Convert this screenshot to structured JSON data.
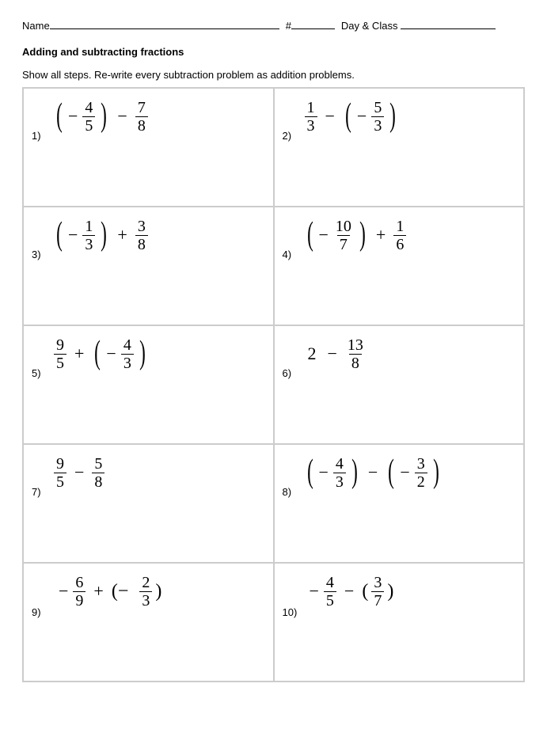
{
  "header": {
    "name_label": "Name",
    "hash_label": "#",
    "dayclass_label": "Day & Class"
  },
  "title": "Adding and subtracting fractions",
  "instructions": "Show all steps. Re-write every subtraction problem as addition problems.",
  "problems": [
    {
      "num": "1)",
      "parts": [
        {
          "t": "lp"
        },
        {
          "t": "neg"
        },
        {
          "t": "frac",
          "n": "4",
          "d": "5"
        },
        {
          "t": "rp"
        },
        {
          "t": "op",
          "v": "−"
        },
        {
          "t": "frac",
          "n": "7",
          "d": "8"
        }
      ]
    },
    {
      "num": "2)",
      "parts": [
        {
          "t": "frac",
          "n": "1",
          "d": "3"
        },
        {
          "t": "op",
          "v": "−"
        },
        {
          "t": "lp"
        },
        {
          "t": "neg"
        },
        {
          "t": "frac",
          "n": "5",
          "d": "3"
        },
        {
          "t": "rp"
        }
      ]
    },
    {
      "num": "3)",
      "parts": [
        {
          "t": "lp"
        },
        {
          "t": "neg"
        },
        {
          "t": "frac",
          "n": "1",
          "d": "3"
        },
        {
          "t": "rp"
        },
        {
          "t": "op",
          "v": "+"
        },
        {
          "t": "frac",
          "n": "3",
          "d": "8"
        }
      ]
    },
    {
      "num": "4)",
      "parts": [
        {
          "t": "lp"
        },
        {
          "t": "neg"
        },
        {
          "t": "frac",
          "n": "10",
          "d": "7"
        },
        {
          "t": "rp"
        },
        {
          "t": "op",
          "v": "+"
        },
        {
          "t": "frac",
          "n": "1",
          "d": "6"
        }
      ]
    },
    {
      "num": "5)",
      "parts": [
        {
          "t": "frac",
          "n": "9",
          "d": "5"
        },
        {
          "t": "op",
          "v": "+"
        },
        {
          "t": "lp"
        },
        {
          "t": "neg"
        },
        {
          "t": "frac",
          "n": "4",
          "d": "3"
        },
        {
          "t": "rp"
        }
      ]
    },
    {
      "num": "6)",
      "parts": [
        {
          "t": "whole",
          "v": "2"
        },
        {
          "t": "op",
          "v": "−"
        },
        {
          "t": "frac",
          "n": "13",
          "d": "8"
        }
      ]
    },
    {
      "num": "7)",
      "parts": [
        {
          "t": "frac",
          "n": "9",
          "d": "5"
        },
        {
          "t": "op",
          "v": "−"
        },
        {
          "t": "frac",
          "n": "5",
          "d": "8"
        }
      ]
    },
    {
      "num": "8)",
      "parts": [
        {
          "t": "lp"
        },
        {
          "t": "neg"
        },
        {
          "t": "frac",
          "n": "4",
          "d": "3"
        },
        {
          "t": "rp"
        },
        {
          "t": "op",
          "v": "−"
        },
        {
          "t": "lp"
        },
        {
          "t": "neg"
        },
        {
          "t": "frac",
          "n": "3",
          "d": "2"
        },
        {
          "t": "rp"
        }
      ]
    },
    {
      "num": "9)",
      "parts": [
        {
          "t": "neg"
        },
        {
          "t": "frac",
          "n": "6",
          "d": "9"
        },
        {
          "t": "op",
          "v": "+"
        },
        {
          "t": "txt",
          "v": "(−"
        },
        {
          "t": "sp"
        },
        {
          "t": "frac",
          "n": "2",
          "d": "3"
        },
        {
          "t": "txt",
          "v": ")"
        }
      ]
    },
    {
      "num": "10)",
      "parts": [
        {
          "t": "neg"
        },
        {
          "t": "frac",
          "n": "4",
          "d": "5"
        },
        {
          "t": "op",
          "v": "−"
        },
        {
          "t": "txt",
          "v": "("
        },
        {
          "t": "frac",
          "n": "3",
          "d": "7"
        },
        {
          "t": "txt",
          "v": ")"
        }
      ]
    }
  ]
}
